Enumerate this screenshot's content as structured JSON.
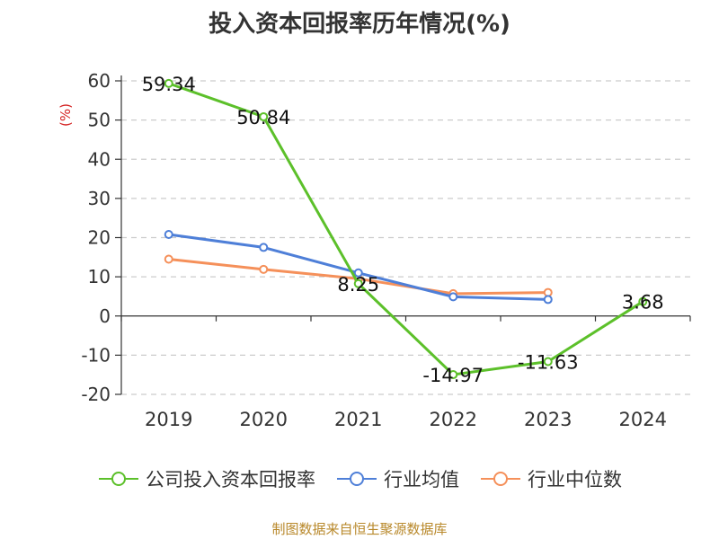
{
  "title": "投入资本回报率历年情况(%)",
  "footer": "制图数据来自恒生聚源数据库",
  "chart_data": {
    "type": "line",
    "title": "投入资本回报率历年情况(%)",
    "ylabel": "(%)",
    "categories": [
      "2019",
      "2020",
      "2021",
      "2022",
      "2023",
      "2024"
    ],
    "ylim": [
      -20,
      60
    ],
    "yticks": [
      60,
      50,
      40,
      30,
      20,
      10,
      0,
      -10,
      -20
    ],
    "grid": true,
    "legend_position": "bottom",
    "series": [
      {
        "name": "公司投入资本回报率",
        "color": "#5cc02a",
        "values": [
          59.34,
          50.84,
          8.25,
          -14.97,
          -11.63,
          3.68
        ],
        "labels": [
          "59.34",
          "50.84",
          "8.25",
          "-14.97",
          "-11.63",
          "3.68"
        ]
      },
      {
        "name": "行业均值",
        "color": "#4e7fd8",
        "values": [
          20.8,
          17.5,
          11.0,
          4.9,
          4.2,
          null
        ]
      },
      {
        "name": "行业中位数",
        "color": "#f5905a",
        "values": [
          14.5,
          11.9,
          9.5,
          5.7,
          6.0,
          null
        ]
      }
    ]
  }
}
